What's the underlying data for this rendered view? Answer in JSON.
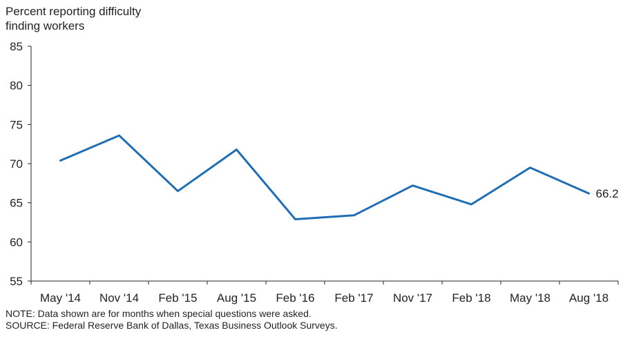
{
  "chart_data": {
    "type": "line",
    "ylabel_lines": [
      "Percent reporting difficulty",
      "finding workers"
    ],
    "categories": [
      "May '14",
      "Nov '14",
      "Feb '15",
      "Aug '15",
      "Feb '16",
      "Feb '17",
      "Nov '17",
      "Feb '18",
      "May '18",
      "Aug '18"
    ],
    "series": [
      {
        "values": [
          70.4,
          73.6,
          66.5,
          71.8,
          62.9,
          63.4,
          67.2,
          64.8,
          69.5,
          66.2
        ],
        "color": "#1f6eb5"
      }
    ],
    "yticks": [
      55,
      60,
      65,
      70,
      75,
      80,
      85
    ],
    "ylim": [
      55,
      85
    ],
    "grid": false,
    "annotations": [
      {
        "index": 9,
        "text": "66.2"
      }
    ]
  },
  "notes": {
    "note": "NOTE: Data shown are for months when special questions were asked.",
    "source": "SOURCE: Federal Reserve Bank of Dallas, Texas Business Outlook Surveys."
  }
}
